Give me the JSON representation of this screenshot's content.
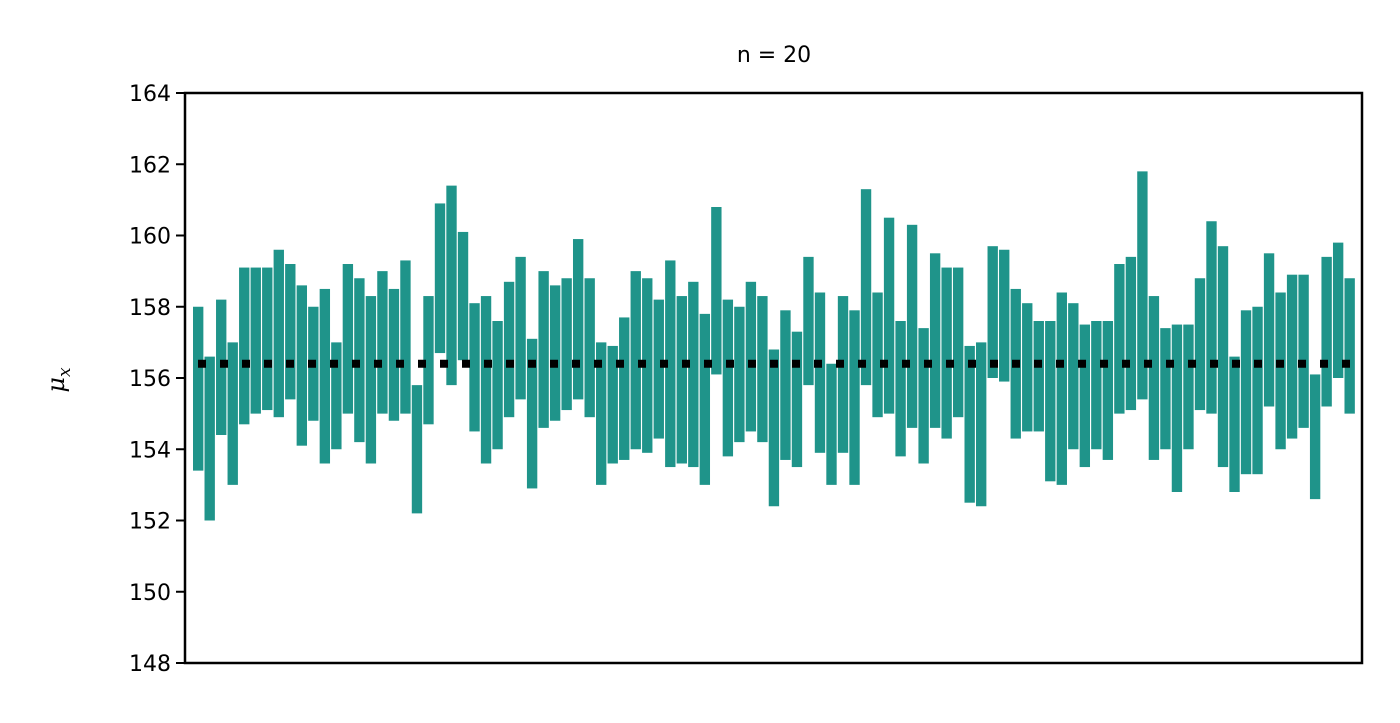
{
  "chart_data": {
    "type": "interval",
    "title": "n = 20",
    "ylabel_main": "μ",
    "ylabel_sub": "x",
    "ylim": [
      148,
      164
    ],
    "yticks": [
      148,
      150,
      152,
      154,
      156,
      158,
      160,
      162,
      164
    ],
    "xticks_shown": false,
    "grid": false,
    "reference_line": {
      "value": 156.4,
      "style": "dotted",
      "color": "#000000"
    },
    "interval_color": "#1f948a",
    "intervals": [
      [
        153.4,
        158.0
      ],
      [
        152.0,
        156.6
      ],
      [
        154.4,
        158.2
      ],
      [
        153.0,
        157.0
      ],
      [
        154.7,
        159.1
      ],
      [
        155.0,
        159.1
      ],
      [
        155.1,
        159.1
      ],
      [
        154.9,
        159.6
      ],
      [
        155.4,
        159.2
      ],
      [
        154.1,
        158.6
      ],
      [
        154.8,
        158.0
      ],
      [
        153.6,
        158.5
      ],
      [
        154.0,
        157.0
      ],
      [
        155.0,
        159.2
      ],
      [
        154.2,
        158.8
      ],
      [
        153.6,
        158.3
      ],
      [
        155.0,
        159.0
      ],
      [
        154.8,
        158.5
      ],
      [
        155.0,
        159.3
      ],
      [
        152.2,
        155.8
      ],
      [
        154.7,
        158.3
      ],
      [
        156.7,
        160.9
      ],
      [
        155.8,
        161.4
      ],
      [
        156.5,
        160.1
      ],
      [
        154.5,
        158.1
      ],
      [
        153.6,
        158.3
      ],
      [
        154.0,
        157.6
      ],
      [
        154.9,
        158.7
      ],
      [
        155.4,
        159.4
      ],
      [
        152.9,
        157.1
      ],
      [
        154.6,
        159.0
      ],
      [
        154.8,
        158.6
      ],
      [
        155.1,
        158.8
      ],
      [
        155.4,
        159.9
      ],
      [
        154.9,
        158.8
      ],
      [
        153.0,
        157.0
      ],
      [
        153.6,
        156.9
      ],
      [
        153.7,
        157.7
      ],
      [
        154.0,
        159.0
      ],
      [
        153.9,
        158.8
      ],
      [
        154.3,
        158.2
      ],
      [
        153.5,
        159.3
      ],
      [
        153.6,
        158.3
      ],
      [
        153.5,
        158.7
      ],
      [
        153.0,
        157.8
      ],
      [
        156.1,
        160.8
      ],
      [
        153.8,
        158.2
      ],
      [
        154.2,
        158.0
      ],
      [
        154.5,
        158.7
      ],
      [
        154.2,
        158.3
      ],
      [
        152.4,
        156.8
      ],
      [
        153.7,
        157.9
      ],
      [
        153.5,
        157.3
      ],
      [
        155.8,
        159.4
      ],
      [
        153.9,
        158.4
      ],
      [
        153.0,
        156.4
      ],
      [
        153.9,
        158.3
      ],
      [
        153.0,
        157.9
      ],
      [
        155.8,
        161.3
      ],
      [
        154.9,
        158.4
      ],
      [
        155.0,
        160.5
      ],
      [
        153.8,
        157.6
      ],
      [
        154.6,
        160.3
      ],
      [
        153.6,
        157.4
      ],
      [
        154.6,
        159.5
      ],
      [
        154.3,
        159.1
      ],
      [
        154.9,
        159.1
      ],
      [
        152.5,
        156.9
      ],
      [
        152.4,
        157.0
      ],
      [
        156.0,
        159.7
      ],
      [
        155.9,
        159.6
      ],
      [
        154.3,
        158.5
      ],
      [
        154.5,
        158.1
      ],
      [
        154.5,
        157.6
      ],
      [
        153.1,
        157.6
      ],
      [
        153.0,
        158.4
      ],
      [
        154.0,
        158.1
      ],
      [
        153.5,
        157.5
      ],
      [
        154.0,
        157.6
      ],
      [
        153.7,
        157.6
      ],
      [
        155.0,
        159.2
      ],
      [
        155.1,
        159.4
      ],
      [
        155.4,
        161.8
      ],
      [
        153.7,
        158.3
      ],
      [
        154.0,
        157.4
      ],
      [
        152.8,
        157.5
      ],
      [
        154.0,
        157.5
      ],
      [
        155.1,
        158.8
      ],
      [
        155.0,
        160.4
      ],
      [
        153.5,
        159.7
      ],
      [
        152.8,
        156.6
      ],
      [
        153.3,
        157.9
      ],
      [
        153.3,
        158.0
      ],
      [
        155.2,
        159.5
      ],
      [
        154.0,
        158.4
      ],
      [
        154.3,
        158.9
      ],
      [
        154.6,
        158.9
      ],
      [
        152.6,
        156.1
      ],
      [
        155.2,
        159.4
      ],
      [
        156.0,
        159.8
      ],
      [
        155.0,
        158.8
      ]
    ]
  }
}
